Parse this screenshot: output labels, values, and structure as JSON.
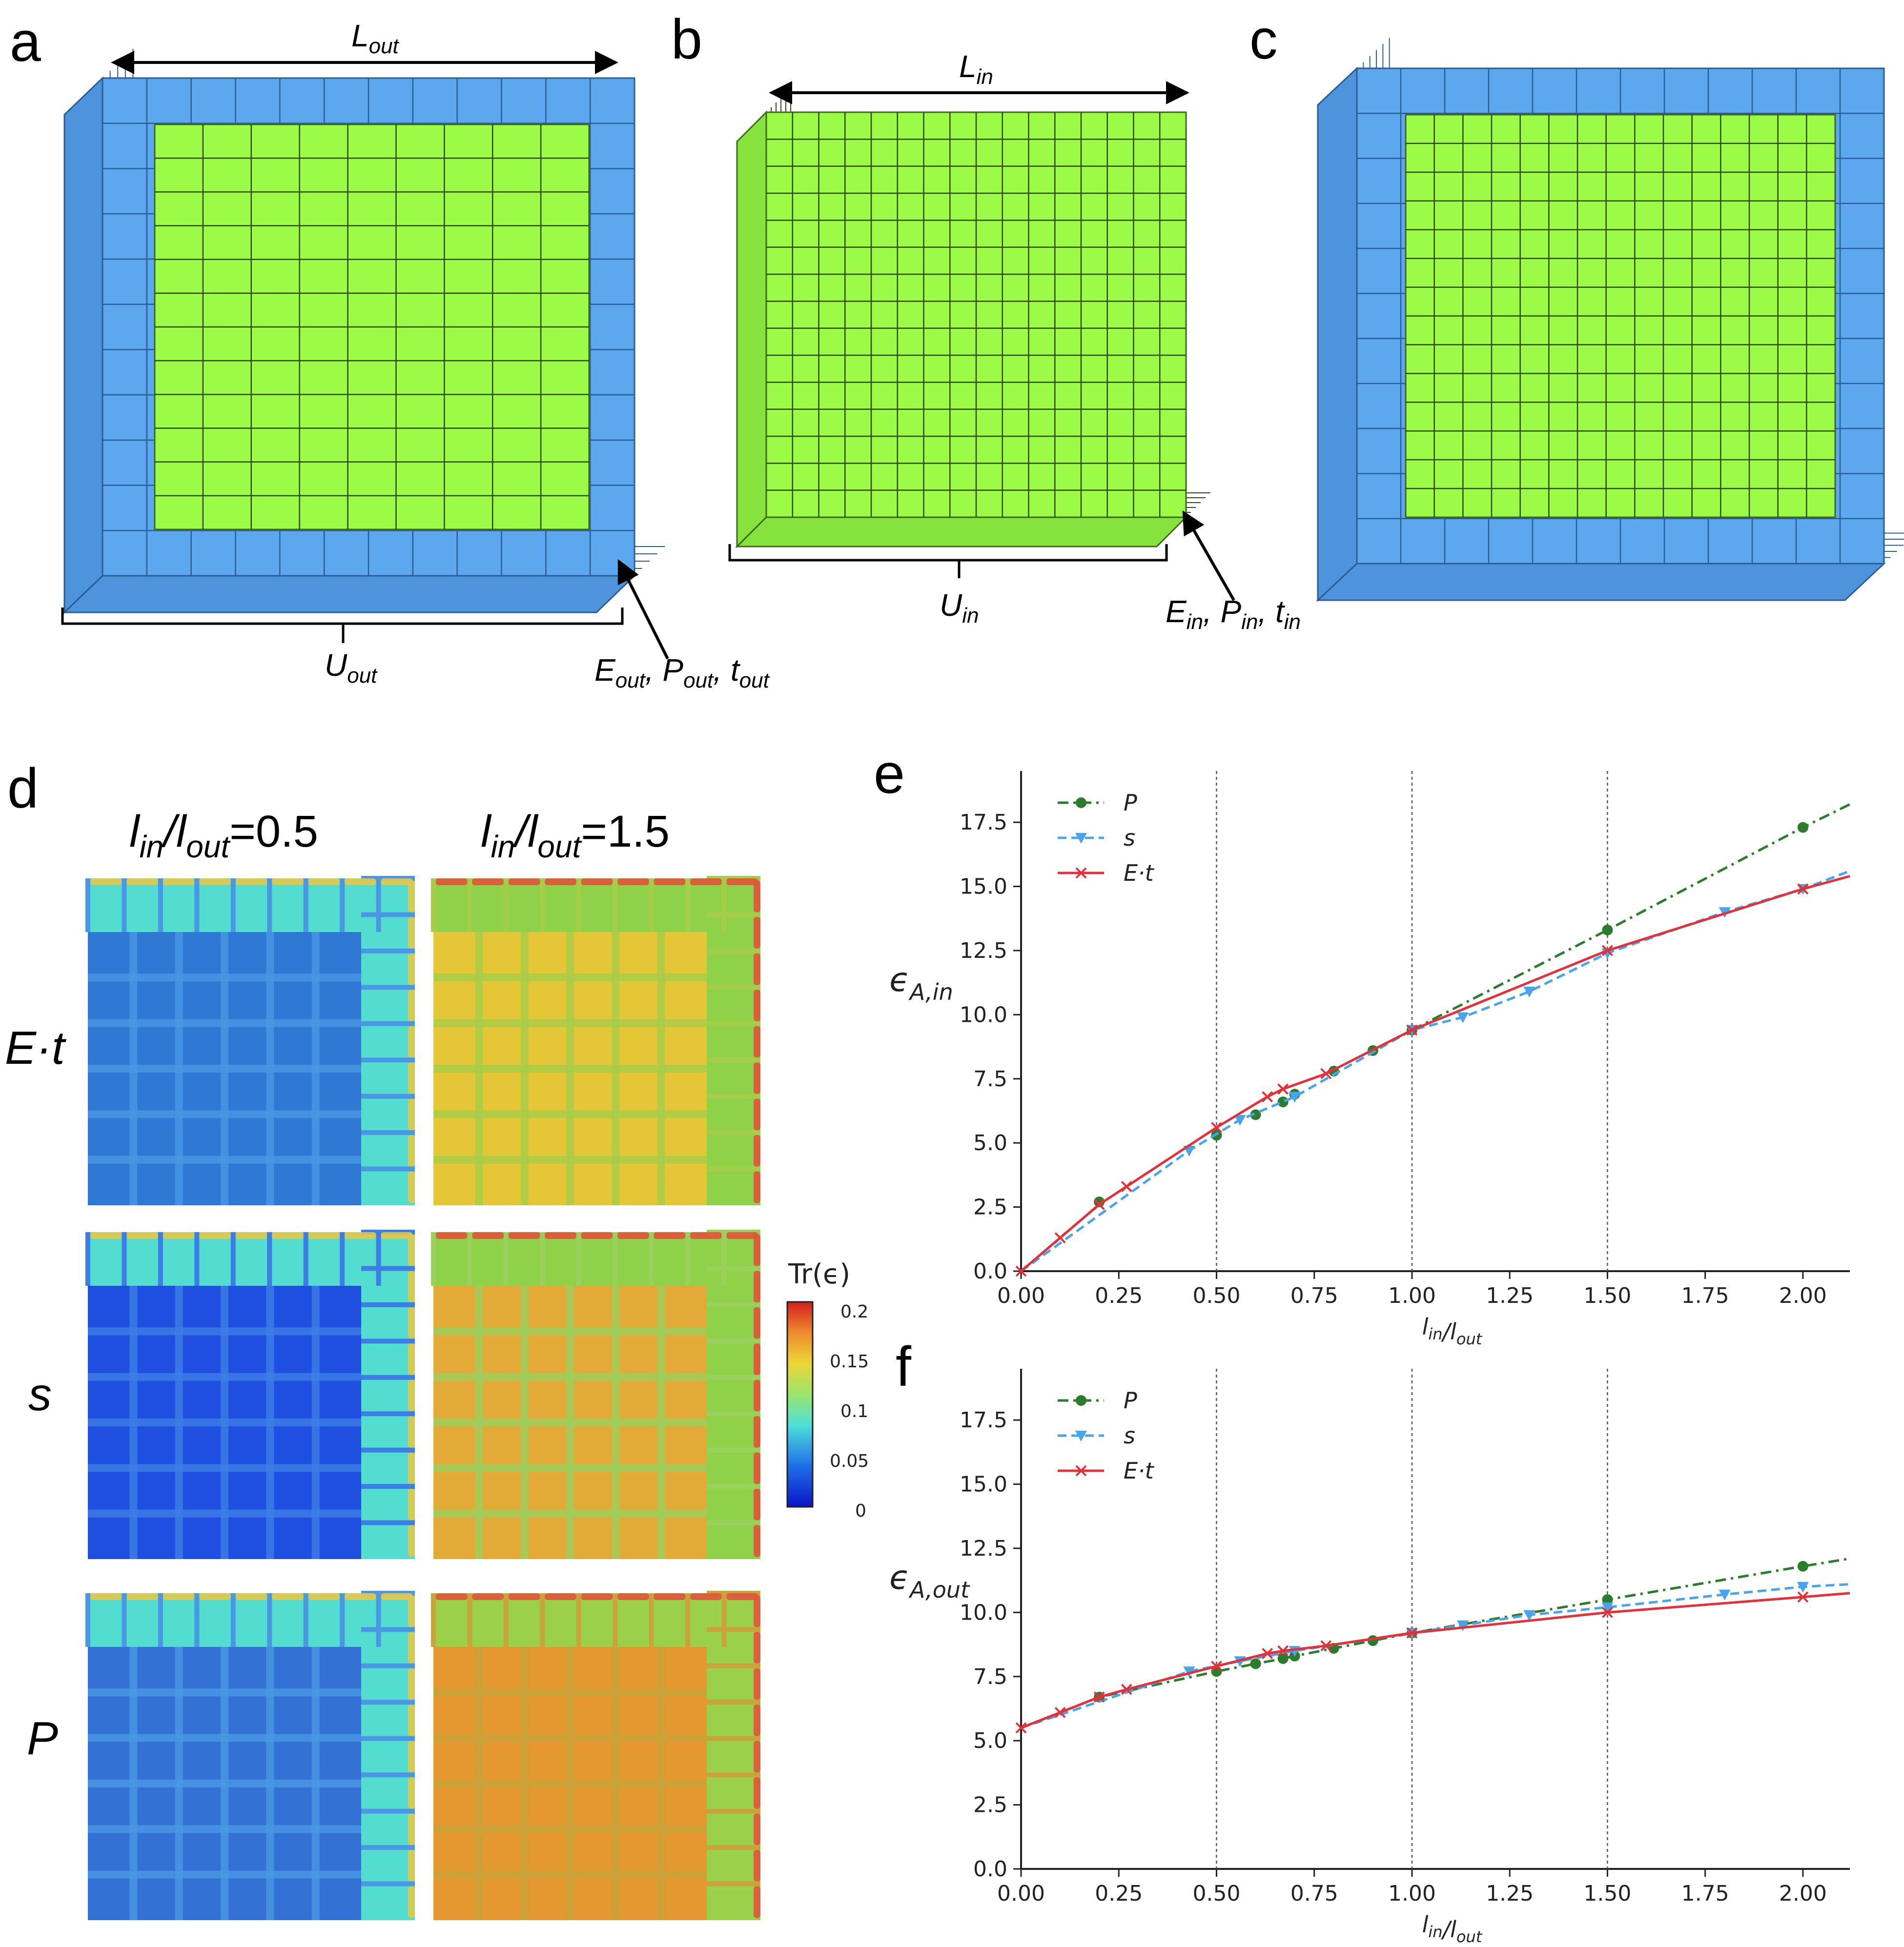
{
  "panels": {
    "a": {
      "letter": "a",
      "length_label": "L",
      "length_sub": "out",
      "edge_label": "U",
      "edge_sub": "out",
      "props": [
        {
          "t": "E",
          "s": "out"
        },
        {
          "t": "P",
          "s": "out"
        },
        {
          "t": "t",
          "s": "out"
        }
      ]
    },
    "b": {
      "letter": "b",
      "length_label": "L",
      "length_sub": "in",
      "edge_label": "U",
      "edge_sub": "in",
      "props": [
        {
          "t": "E",
          "s": "in"
        },
        {
          "t": "P",
          "s": "in"
        },
        {
          "t": "t",
          "s": "in"
        }
      ]
    },
    "c": {
      "letter": "c"
    },
    "d": {
      "letter": "d",
      "col_headers": [
        {
          "a": "l",
          "s1": "in",
          "b": "/l",
          "s2": "out",
          "tail": "=0.5"
        },
        {
          "a": "l",
          "s1": "in",
          "b": "/l",
          "s2": "out",
          "tail": "=1.5"
        }
      ],
      "row_labels": [
        "E·t",
        "s",
        "P"
      ],
      "colorbar": {
        "title": "Tr(ϵ)",
        "ticks": [
          "0.2",
          "0.15",
          "0.1",
          "0.05",
          "0"
        ]
      }
    },
    "e": {
      "letter": "e"
    },
    "f": {
      "letter": "f"
    }
  },
  "colors": {
    "blue": "#5da7ee",
    "green": "#9bfb46",
    "P": "#2b7d2b",
    "s": "#49a4ee",
    "Et": "#e2313a"
  },
  "chart_data": [
    {
      "id": "e",
      "type": "line",
      "xlabel": "l_in/l_out",
      "ylabel": "ϵ_A,in",
      "xlim": [
        0,
        2.12
      ],
      "ylim": [
        0,
        19.5
      ],
      "xticks": [
        "0.00",
        "0.25",
        "0.50",
        "0.75",
        "1.00",
        "1.25",
        "1.50",
        "1.75",
        "2.00"
      ],
      "yticks": [
        "0.0",
        "2.5",
        "5.0",
        "7.5",
        "10.0",
        "12.5",
        "15.0",
        "17.5"
      ],
      "vlines": [
        0.5,
        1.0,
        1.5
      ],
      "legend_position": "top-left",
      "series": [
        {
          "name": "P",
          "style": "dashdot",
          "marker": "circle",
          "x": [
            0.2,
            0.5,
            0.6,
            0.67,
            0.7,
            0.8,
            0.9,
            1.0,
            1.5,
            2.0
          ],
          "y": [
            2.7,
            5.3,
            6.1,
            6.6,
            6.9,
            7.8,
            8.6,
            9.4,
            13.3,
            17.3
          ],
          "line_x": [
            1.0,
            1.5,
            2.0,
            2.12
          ],
          "line_y": [
            9.4,
            13.3,
            17.3,
            18.2
          ]
        },
        {
          "name": "s",
          "style": "dashed",
          "marker": "triangle-down",
          "x": [
            0.43,
            0.56,
            0.7,
            1.0,
            1.13,
            1.3,
            1.5,
            1.8,
            2.0
          ],
          "y": [
            4.7,
            5.9,
            6.8,
            9.4,
            9.9,
            10.9,
            12.4,
            14.0,
            14.9
          ],
          "line_x": [
            0,
            0.43,
            0.56,
            0.7,
            1.0,
            1.13,
            1.3,
            1.5,
            1.8,
            2.0,
            2.12
          ],
          "line_y": [
            0,
            4.7,
            5.9,
            6.8,
            9.4,
            9.9,
            10.9,
            12.4,
            14.0,
            14.9,
            15.6
          ]
        },
        {
          "name": "E·t",
          "style": "solid",
          "marker": "x",
          "x": [
            0,
            0.1,
            0.2,
            0.27,
            0.5,
            0.63,
            0.67,
            0.78,
            1.0,
            1.5,
            2.0
          ],
          "y": [
            0,
            1.3,
            2.6,
            3.3,
            5.6,
            6.8,
            7.1,
            7.7,
            9.4,
            12.5,
            14.9
          ],
          "line_x": [
            0,
            0.1,
            0.2,
            0.27,
            0.5,
            0.63,
            0.67,
            0.78,
            1.0,
            1.5,
            2.0,
            2.12
          ],
          "line_y": [
            0,
            1.3,
            2.6,
            3.3,
            5.6,
            6.8,
            7.1,
            7.7,
            9.4,
            12.5,
            14.9,
            15.4
          ]
        }
      ]
    },
    {
      "id": "f",
      "type": "line",
      "xlabel": "l_in/l_out",
      "ylabel": "ϵ_A,out",
      "xlim": [
        0,
        2.12
      ],
      "ylim": [
        0,
        19.5
      ],
      "xticks": [
        "0.00",
        "0.25",
        "0.50",
        "0.75",
        "1.00",
        "1.25",
        "1.50",
        "1.75",
        "2.00"
      ],
      "yticks": [
        "0.0",
        "2.5",
        "5.0",
        "7.5",
        "10.0",
        "12.5",
        "15.0",
        "17.5"
      ],
      "vlines": [
        0.5,
        1.0,
        1.5
      ],
      "legend_position": "top-left",
      "series": [
        {
          "name": "P",
          "style": "dashdot",
          "marker": "circle",
          "x": [
            0.2,
            0.5,
            0.6,
            0.67,
            0.7,
            0.8,
            0.9,
            1.0,
            1.5,
            2.0
          ],
          "y": [
            6.7,
            7.7,
            8.0,
            8.2,
            8.3,
            8.6,
            8.9,
            9.2,
            10.5,
            11.8
          ],
          "line_x": [
            0,
            0.2,
            0.5,
            0.6,
            0.67,
            0.7,
            0.8,
            0.9,
            1.0,
            1.5,
            2.0,
            2.12
          ],
          "line_y": [
            5.5,
            6.7,
            7.7,
            8.0,
            8.2,
            8.3,
            8.6,
            8.9,
            9.2,
            10.5,
            11.8,
            12.1
          ]
        },
        {
          "name": "s",
          "style": "dashed",
          "marker": "triangle-down",
          "x": [
            0.43,
            0.56,
            0.7,
            1.0,
            1.13,
            1.3,
            1.5,
            1.8,
            2.0
          ],
          "y": [
            7.7,
            8.1,
            8.5,
            9.2,
            9.5,
            9.9,
            10.2,
            10.7,
            11.0
          ],
          "line_x": [
            0,
            0.43,
            0.56,
            0.7,
            1.0,
            1.13,
            1.3,
            1.5,
            1.8,
            2.0,
            2.12
          ],
          "line_y": [
            5.5,
            7.7,
            8.1,
            8.5,
            9.2,
            9.5,
            9.9,
            10.2,
            10.7,
            11.0,
            11.1
          ]
        },
        {
          "name": "E·t",
          "style": "solid",
          "marker": "x",
          "x": [
            0,
            0.1,
            0.2,
            0.27,
            0.5,
            0.63,
            0.67,
            0.78,
            1.0,
            1.5,
            2.0
          ],
          "y": [
            5.5,
            6.1,
            6.7,
            7.0,
            7.9,
            8.4,
            8.5,
            8.7,
            9.2,
            10.0,
            10.6
          ],
          "line_x": [
            0,
            0.1,
            0.2,
            0.27,
            0.5,
            0.63,
            0.67,
            0.78,
            1.0,
            1.5,
            2.0,
            2.12
          ],
          "line_y": [
            5.5,
            6.1,
            6.7,
            7.0,
            7.9,
            8.4,
            8.5,
            8.7,
            9.2,
            10.0,
            10.6,
            10.75
          ]
        }
      ]
    }
  ]
}
